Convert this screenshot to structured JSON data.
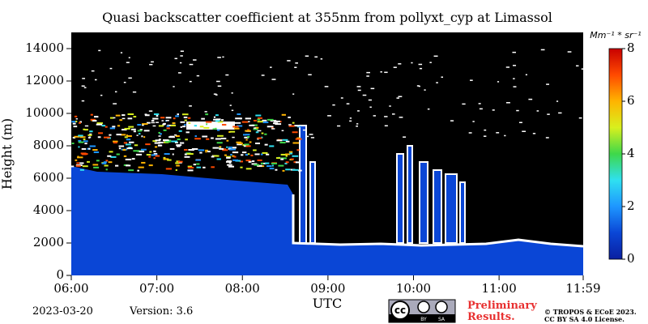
{
  "chart_data": {
    "type": "heatmap",
    "title": "Quasi backscatter coefficient at 355nm from pollyxt_cyp at Limassol",
    "xlabel": "UTC",
    "ylabel": "Height (m)",
    "xlim": [
      360,
      719
    ],
    "xticks": [
      {
        "value": 360,
        "label": "06:00"
      },
      {
        "value": 420,
        "label": "07:00"
      },
      {
        "value": 480,
        "label": "08:00"
      },
      {
        "value": 540,
        "label": "09:00"
      },
      {
        "value": 600,
        "label": "10:00"
      },
      {
        "value": 660,
        "label": "11:00"
      },
      {
        "value": 719,
        "label": "11:59"
      }
    ],
    "ylim": [
      0,
      15000
    ],
    "yticks": [
      0,
      2000,
      4000,
      6000,
      8000,
      10000,
      12000,
      14000
    ],
    "colorbar_label": "Mm⁻¹ * sr⁻¹",
    "zlim": [
      0,
      8
    ],
    "zticks": [
      0,
      2,
      4,
      6,
      8
    ],
    "colormap": [
      "#0a1fa0",
      "#0a46d6",
      "#1e96ff",
      "#2fe0f0",
      "#3ed84a",
      "#d8f01e",
      "#ffb400",
      "#ff4a00",
      "#c80000"
    ],
    "date": "2023-03-20",
    "version": "Version: 3.6",
    "notice": [
      "Preliminary",
      "Results."
    ],
    "copyright": [
      "© TROPOS & ECoE 2023.",
      "CC BY SA 4.0 License."
    ],
    "license_badge": [
      "cc",
      "BY",
      "SA"
    ]
  }
}
